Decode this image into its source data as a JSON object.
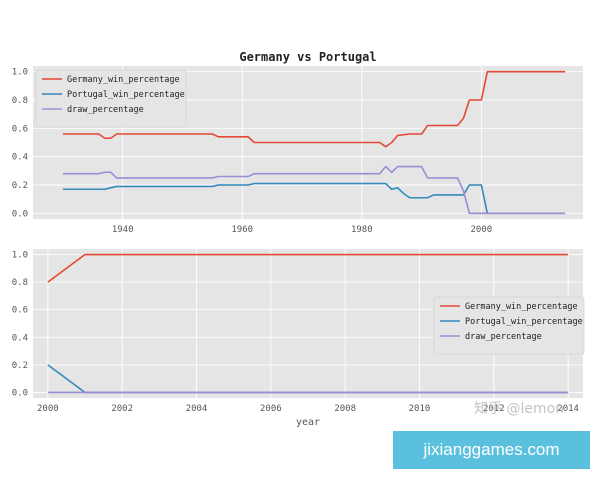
{
  "colors": {
    "background": "#ffffff",
    "plot_background": "#e5e5e5",
    "grid": "#ffffff",
    "germany": "#e24a33",
    "portugal": "#348abd",
    "draw": "#988ed5",
    "watermark_box": "#5bc0de"
  },
  "watermark": {
    "site_text": "jixianggames.com",
    "zhihu_text": "知乎 @lemon"
  },
  "chart_data": [
    {
      "type": "line",
      "title": "Germany vs Portugal",
      "xlabel": "",
      "ylabel": "",
      "xlim": [
        1925,
        2017
      ],
      "ylim": [
        -0.04,
        1.04
      ],
      "x_ticks": [
        1940,
        1960,
        1980,
        2000
      ],
      "y_ticks": [
        0.0,
        0.2,
        0.4,
        0.6,
        0.8,
        1.0
      ],
      "y_tick_labels": [
        "0.0",
        "0.2",
        "0.4",
        "0.6",
        "0.8",
        "1.0"
      ],
      "grid": true,
      "legend_position": "upper-left",
      "series": [
        {
          "name": "Germany_win_percentage",
          "color_key": "germany",
          "points": [
            [
              1930,
              0.56
            ],
            [
              1936,
              0.56
            ],
            [
              1937,
              0.53
            ],
            [
              1938,
              0.53
            ],
            [
              1939,
              0.56
            ],
            [
              1955,
              0.56
            ],
            [
              1956,
              0.54
            ],
            [
              1961,
              0.54
            ],
            [
              1962,
              0.5
            ],
            [
              1983,
              0.5
            ],
            [
              1984,
              0.47
            ],
            [
              1985,
              0.5
            ],
            [
              1986,
              0.55
            ],
            [
              1988,
              0.56
            ],
            [
              1990,
              0.56
            ],
            [
              1991,
              0.62
            ],
            [
              1996,
              0.62
            ],
            [
              1997,
              0.67
            ],
            [
              1998,
              0.8
            ],
            [
              1999,
              0.8
            ],
            [
              2000,
              0.8
            ],
            [
              2001,
              1.0
            ],
            [
              2014,
              1.0
            ]
          ]
        },
        {
          "name": "Portugal_win_percentage",
          "color_key": "portugal",
          "points": [
            [
              1930,
              0.17
            ],
            [
              1937,
              0.17
            ],
            [
              1938,
              0.18
            ],
            [
              1939,
              0.19
            ],
            [
              1955,
              0.19
            ],
            [
              1956,
              0.2
            ],
            [
              1961,
              0.2
            ],
            [
              1962,
              0.21
            ],
            [
              1984,
              0.21
            ],
            [
              1985,
              0.17
            ],
            [
              1986,
              0.18
            ],
            [
              1987,
              0.14
            ],
            [
              1988,
              0.11
            ],
            [
              1991,
              0.11
            ],
            [
              1992,
              0.13
            ],
            [
              1997,
              0.13
            ],
            [
              1998,
              0.2
            ],
            [
              2000,
              0.2
            ],
            [
              2001,
              0.0
            ],
            [
              2014,
              0.0
            ]
          ]
        },
        {
          "name": "draw_percentage",
          "color_key": "draw",
          "points": [
            [
              1930,
              0.28
            ],
            [
              1936,
              0.28
            ],
            [
              1937,
              0.29
            ],
            [
              1938,
              0.29
            ],
            [
              1939,
              0.25
            ],
            [
              1955,
              0.25
            ],
            [
              1956,
              0.26
            ],
            [
              1961,
              0.26
            ],
            [
              1962,
              0.28
            ],
            [
              1983,
              0.28
            ],
            [
              1984,
              0.33
            ],
            [
              1985,
              0.29
            ],
            [
              1986,
              0.33
            ],
            [
              1988,
              0.33
            ],
            [
              1990,
              0.33
            ],
            [
              1991,
              0.25
            ],
            [
              1996,
              0.25
            ],
            [
              1997,
              0.16
            ],
            [
              1998,
              0.0
            ],
            [
              2014,
              0.0
            ]
          ]
        }
      ]
    },
    {
      "type": "line",
      "title": "",
      "xlabel": "year",
      "ylabel": "",
      "xlim": [
        1999.6,
        2014.4
      ],
      "ylim": [
        -0.04,
        1.04
      ],
      "x_ticks": [
        2000,
        2002,
        2004,
        2006,
        2008,
        2010,
        2012,
        2014
      ],
      "y_ticks": [
        0.0,
        0.2,
        0.4,
        0.6,
        0.8,
        1.0
      ],
      "y_tick_labels": [
        "0.0",
        "0.2",
        "0.4",
        "0.6",
        "0.8",
        "1.0"
      ],
      "grid": true,
      "legend_position": "center-right",
      "series": [
        {
          "name": "Germany_win_percentage",
          "color_key": "germany",
          "points": [
            [
              2000,
              0.8
            ],
            [
              2001,
              1.0
            ],
            [
              2014,
              1.0
            ]
          ]
        },
        {
          "name": "Portugal_win_percentage",
          "color_key": "portugal",
          "points": [
            [
              2000,
              0.2
            ],
            [
              2001,
              0.0
            ],
            [
              2014,
              0.0
            ]
          ]
        },
        {
          "name": "draw_percentage",
          "color_key": "draw",
          "points": [
            [
              2000,
              0.0
            ],
            [
              2014,
              0.0
            ]
          ]
        }
      ]
    }
  ]
}
